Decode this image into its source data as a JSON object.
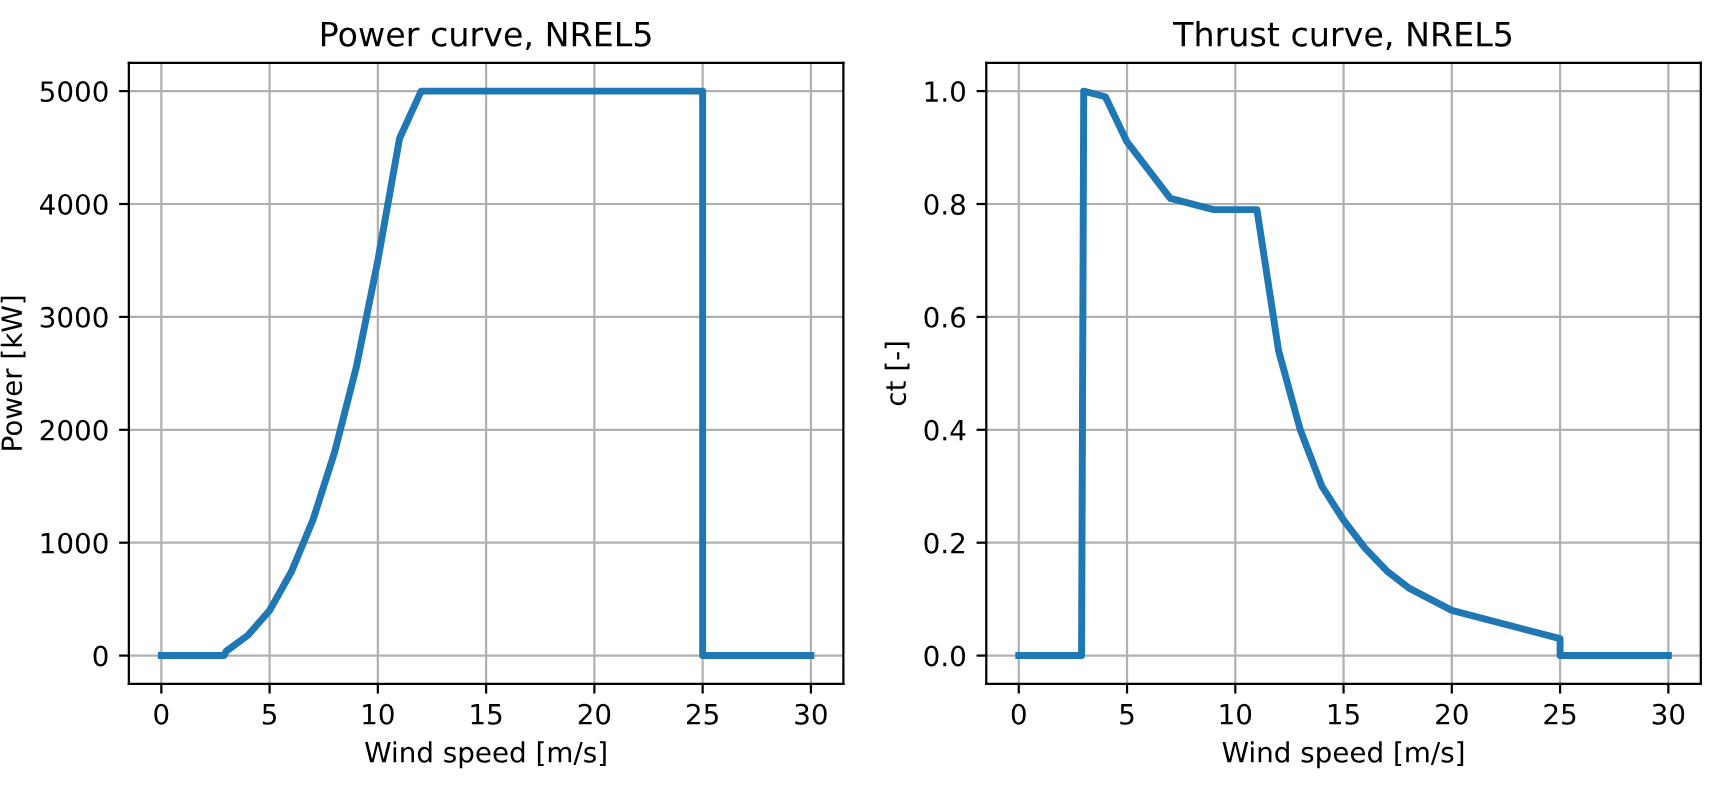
{
  "chart_data": [
    {
      "type": "line",
      "title": "Power curve, NREL5",
      "xlabel": "Wind speed [m/s]",
      "ylabel": "Power [kW]",
      "series": [
        {
          "color": "#1f77b4",
          "x": [
            0,
            2.9,
            3,
            4,
            5,
            6,
            7,
            8,
            9,
            10,
            11,
            12,
            25,
            25,
            30
          ],
          "values": [
            0,
            0,
            40,
            180,
            400,
            740,
            1200,
            1800,
            2550,
            3500,
            4580,
            5000,
            5000,
            0,
            0
          ]
        }
      ],
      "xlim": [
        -1.5,
        31.5
      ],
      "xticks": [
        0,
        5,
        10,
        15,
        20,
        25,
        30
      ],
      "ylim": [
        -250,
        5250
      ],
      "yticks": [
        0,
        1000,
        2000,
        3000,
        4000,
        5000
      ],
      "grid": true,
      "line_style": "solid",
      "marker": "none"
    },
    {
      "type": "line",
      "title": "Thrust curve, NREL5",
      "xlabel": "Wind speed [m/s]",
      "ylabel": "ct [-]",
      "series": [
        {
          "color": "#1f77b4",
          "x": [
            0,
            2.9,
            3,
            4,
            5,
            6,
            7,
            9,
            11,
            12,
            13,
            14,
            15,
            16,
            17,
            18,
            20,
            25,
            25,
            30
          ],
          "values": [
            0,
            0,
            1.0,
            0.99,
            0.91,
            0.86,
            0.81,
            0.79,
            0.79,
            0.54,
            0.4,
            0.3,
            0.24,
            0.19,
            0.15,
            0.12,
            0.08,
            0.03,
            0,
            0
          ]
        }
      ],
      "xlim": [
        -1.5,
        31.5
      ],
      "xticks": [
        0,
        5,
        10,
        15,
        20,
        25,
        30
      ],
      "ylim": [
        -0.05,
        1.05
      ],
      "yticks": [
        {
          "value": 0,
          "label": "0.0"
        },
        {
          "value": 0.2,
          "label": "0.2"
        },
        {
          "value": 0.4,
          "label": "0.4"
        },
        {
          "value": 0.6,
          "label": "0.6"
        },
        {
          "value": 0.8,
          "label": "0.8"
        },
        {
          "value": 1.0,
          "label": "1.0"
        }
      ],
      "grid": true,
      "line_style": "solid",
      "marker": "none"
    }
  ]
}
